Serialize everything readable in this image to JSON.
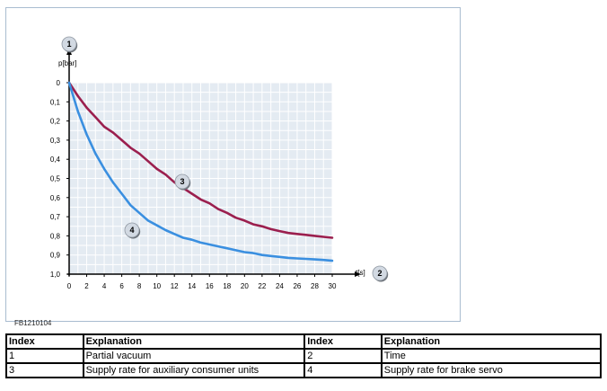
{
  "figure": {
    "code": "FB1210104"
  },
  "chart_data": {
    "type": "line",
    "xlabel": "t[s]",
    "ylabel": "p[bar]",
    "xlim": [
      0,
      30
    ],
    "ylim": [
      0,
      1.0
    ],
    "y_inverted": true,
    "grid": true,
    "x_ticks": [
      "0",
      "2",
      "4",
      "6",
      "8",
      "10",
      "12",
      "14",
      "16",
      "18",
      "20",
      "22",
      "24",
      "26",
      "28",
      "30"
    ],
    "y_ticks": [
      "0",
      "0,1",
      "0,2",
      "0,3",
      "0,4",
      "0,5",
      "0,6",
      "0,7",
      "0,8",
      "0,9",
      "1,0"
    ],
    "x_tick_values": [
      0,
      2,
      4,
      6,
      8,
      10,
      12,
      14,
      16,
      18,
      20,
      22,
      24,
      26,
      28,
      30
    ],
    "y_tick_values": [
      0,
      0.1,
      0.2,
      0.3,
      0.4,
      0.5,
      0.6,
      0.7,
      0.8,
      0.9,
      1.0
    ],
    "index_markers": {
      "y_axis": "1",
      "x_axis": "2"
    },
    "series": [
      {
        "marker": "3",
        "color": "#9b1f4e",
        "x": [
          0,
          1,
          2,
          3,
          4,
          5,
          6,
          7,
          8,
          9,
          10,
          11,
          12,
          13,
          14,
          15,
          16,
          17,
          18,
          19,
          20,
          21,
          22,
          23,
          24,
          25,
          26,
          27,
          28,
          29,
          30
        ],
        "y": [
          0.0,
          0.07,
          0.13,
          0.18,
          0.23,
          0.26,
          0.3,
          0.34,
          0.37,
          0.41,
          0.45,
          0.48,
          0.52,
          0.55,
          0.58,
          0.61,
          0.63,
          0.66,
          0.68,
          0.705,
          0.72,
          0.74,
          0.75,
          0.765,
          0.775,
          0.785,
          0.79,
          0.795,
          0.8,
          0.805,
          0.81
        ]
      },
      {
        "marker": "4",
        "color": "#3a8fe0",
        "x": [
          0,
          1,
          2,
          3,
          4,
          5,
          6,
          7,
          8,
          9,
          10,
          11,
          12,
          13,
          14,
          15,
          16,
          17,
          18,
          19,
          20,
          21,
          22,
          23,
          24,
          25,
          26,
          27,
          28,
          29,
          30
        ],
        "y": [
          0.0,
          0.15,
          0.27,
          0.37,
          0.45,
          0.52,
          0.58,
          0.64,
          0.68,
          0.72,
          0.745,
          0.77,
          0.79,
          0.81,
          0.82,
          0.835,
          0.845,
          0.855,
          0.865,
          0.875,
          0.885,
          0.89,
          0.9,
          0.905,
          0.91,
          0.915,
          0.918,
          0.92,
          0.923,
          0.926,
          0.93
        ]
      }
    ]
  },
  "legend": {
    "headers": [
      "Index",
      "Explanation",
      "Index",
      "Explanation"
    ],
    "rows": [
      [
        "1",
        "Partial vacuum",
        "2",
        "Time"
      ],
      [
        "3",
        "Supply rate for auxiliary consumer units",
        "4",
        "Supply rate for brake servo"
      ]
    ]
  },
  "colors": {
    "grid_background": "#e4ebf2",
    "grid_line": "#ffffff",
    "axis": "#000000",
    "marker_fill": "#d2d9e2",
    "frame_border": "#a9bcd0"
  }
}
